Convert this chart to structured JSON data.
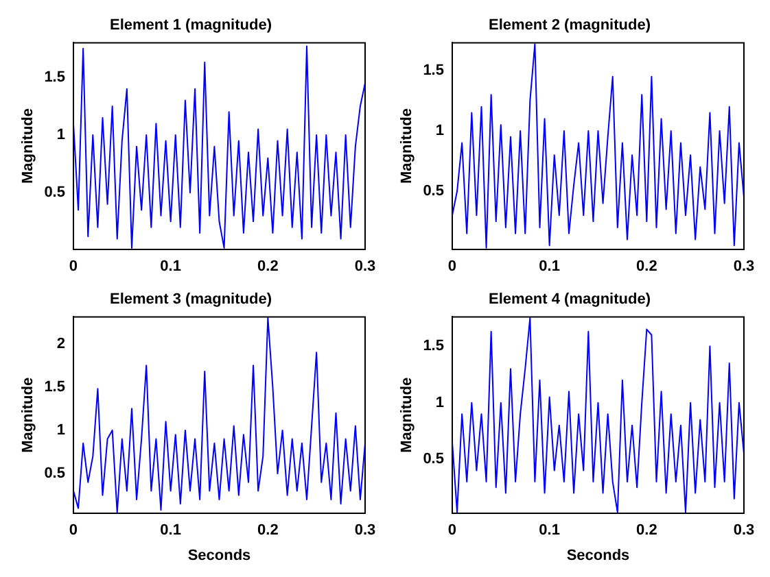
{
  "chart_data": [
    {
      "type": "line",
      "title": "Element 1 (magnitude)",
      "ylabel": "Magnitude",
      "xlim": [
        0,
        0.3
      ],
      "xticks": [
        0,
        0.1,
        0.2,
        0.3
      ],
      "ylim": [
        0.01,
        1.8
      ],
      "yticks": [
        0.5,
        1,
        1.5
      ],
      "grid": false,
      "legend": false,
      "marker": "none",
      "line_style": "solid",
      "x": [
        0,
        0.005,
        0.01,
        0.015,
        0.02,
        0.025,
        0.03,
        0.035,
        0.04,
        0.045,
        0.05,
        0.055,
        0.06,
        0.065,
        0.07,
        0.075,
        0.08,
        0.085,
        0.09,
        0.095,
        0.1,
        0.105,
        0.11,
        0.115,
        0.12,
        0.125,
        0.13,
        0.135,
        0.14,
        0.145,
        0.15,
        0.155,
        0.16,
        0.165,
        0.17,
        0.175,
        0.18,
        0.185,
        0.19,
        0.195,
        0.2,
        0.205,
        0.21,
        0.215,
        0.22,
        0.225,
        0.23,
        0.235,
        0.24,
        0.245,
        0.25,
        0.255,
        0.26,
        0.265,
        0.27,
        0.275,
        0.28,
        0.285,
        0.29,
        0.295,
        0.3
      ],
      "series": [
        {
          "color": "#0000ff",
          "values": [
            1.1,
            0.35,
            1.75,
            0.12,
            1.0,
            0.2,
            1.15,
            0.4,
            1.25,
            0.1,
            0.95,
            1.4,
            0.02,
            0.9,
            0.35,
            1.0,
            0.2,
            1.1,
            0.3,
            0.95,
            0.25,
            1.0,
            0.2,
            1.3,
            0.5,
            1.4,
            0.15,
            1.63,
            0.3,
            0.9,
            0.25,
            0.02,
            1.2,
            0.3,
            0.95,
            0.15,
            0.85,
            0.25,
            1.05,
            0.3,
            0.8,
            0.15,
            0.95,
            0.3,
            1.05,
            0.2,
            0.85,
            0.1,
            1.77,
            0.2,
            1.0,
            0.15,
            1.0,
            0.3,
            0.85,
            0.1,
            1.0,
            0.2,
            0.9,
            1.25,
            1.45
          ]
        }
      ]
    },
    {
      "type": "line",
      "title": "Element 2 (magnitude)",
      "ylabel": "Magnitude",
      "xlim": [
        0,
        0.3
      ],
      "xticks": [
        0,
        0.1,
        0.2,
        0.3
      ],
      "ylim": [
        0.02,
        1.73
      ],
      "yticks": [
        0.5,
        1,
        1.5
      ],
      "grid": false,
      "legend": false,
      "marker": "none",
      "line_style": "solid",
      "x": [
        0,
        0.005,
        0.01,
        0.015,
        0.02,
        0.025,
        0.03,
        0.035,
        0.04,
        0.045,
        0.05,
        0.055,
        0.06,
        0.065,
        0.07,
        0.075,
        0.08,
        0.085,
        0.09,
        0.095,
        0.1,
        0.105,
        0.11,
        0.115,
        0.12,
        0.125,
        0.13,
        0.135,
        0.14,
        0.145,
        0.15,
        0.155,
        0.16,
        0.165,
        0.17,
        0.175,
        0.18,
        0.185,
        0.19,
        0.195,
        0.2,
        0.205,
        0.21,
        0.215,
        0.22,
        0.225,
        0.23,
        0.235,
        0.24,
        0.245,
        0.25,
        0.255,
        0.26,
        0.265,
        0.27,
        0.275,
        0.28,
        0.285,
        0.29,
        0.295,
        0.3
      ],
      "series": [
        {
          "color": "#0000ff",
          "values": [
            0.3,
            0.5,
            0.9,
            0.15,
            1.15,
            0.3,
            1.2,
            0.03,
            1.3,
            0.25,
            1.05,
            0.2,
            0.95,
            0.15,
            1.0,
            0.15,
            1.25,
            1.72,
            0.2,
            1.1,
            0.05,
            0.8,
            0.3,
            1.0,
            0.15,
            0.55,
            0.9,
            0.3,
            1.0,
            0.25,
            1.0,
            0.4,
            0.95,
            1.45,
            0.2,
            0.9,
            0.1,
            0.8,
            0.3,
            1.3,
            0.25,
            1.45,
            0.2,
            1.1,
            0.35,
            1.0,
            0.15,
            0.9,
            0.3,
            0.8,
            0.1,
            0.7,
            0.35,
            1.15,
            0.15,
            1.0,
            0.4,
            1.2,
            0.05,
            0.9,
            0.45
          ]
        }
      ]
    },
    {
      "type": "line",
      "title": "Element 3 (magnitude)",
      "xlabel": "Seconds",
      "ylabel": "Magnitude",
      "xlim": [
        0,
        0.3
      ],
      "xticks": [
        0,
        0.1,
        0.2,
        0.3
      ],
      "ylim": [
        0.04,
        2.31
      ],
      "yticks": [
        0.5,
        1,
        1.5,
        2
      ],
      "grid": false,
      "legend": false,
      "marker": "none",
      "line_style": "solid",
      "x": [
        0,
        0.005,
        0.01,
        0.015,
        0.02,
        0.025,
        0.03,
        0.035,
        0.04,
        0.045,
        0.05,
        0.055,
        0.06,
        0.065,
        0.07,
        0.075,
        0.08,
        0.085,
        0.09,
        0.095,
        0.1,
        0.105,
        0.11,
        0.115,
        0.12,
        0.125,
        0.13,
        0.135,
        0.14,
        0.145,
        0.15,
        0.155,
        0.16,
        0.165,
        0.17,
        0.175,
        0.18,
        0.185,
        0.19,
        0.195,
        0.2,
        0.205,
        0.21,
        0.215,
        0.22,
        0.225,
        0.23,
        0.235,
        0.24,
        0.245,
        0.25,
        0.255,
        0.26,
        0.265,
        0.27,
        0.275,
        0.28,
        0.285,
        0.29,
        0.295,
        0.3
      ],
      "series": [
        {
          "color": "#0000ff",
          "values": [
            0.3,
            0.1,
            0.85,
            0.4,
            0.7,
            1.48,
            0.25,
            0.9,
            1.0,
            0.05,
            0.9,
            0.3,
            1.25,
            0.2,
            0.9,
            1.75,
            0.3,
            0.9,
            0.08,
            1.1,
            0.3,
            0.95,
            0.15,
            1.0,
            0.3,
            0.9,
            0.2,
            1.68,
            0.3,
            0.85,
            0.2,
            0.9,
            0.3,
            1.05,
            0.25,
            0.95,
            0.4,
            1.75,
            0.3,
            0.7,
            2.3,
            1.5,
            0.5,
            1.0,
            0.25,
            0.9,
            0.3,
            0.85,
            0.2,
            1.05,
            1.9,
            0.4,
            0.85,
            0.2,
            1.2,
            0.15,
            0.9,
            0.3,
            1.05,
            0.2,
            0.85
          ]
        }
      ]
    },
    {
      "type": "line",
      "title": "Element 4 (magnitude)",
      "xlabel": "Seconds",
      "ylabel": "Magnitude",
      "xlim": [
        0,
        0.3
      ],
      "xticks": [
        0,
        0.1,
        0.2,
        0.3
      ],
      "ylim": [
        0.02,
        1.76
      ],
      "yticks": [
        0.5,
        1,
        1.5
      ],
      "grid": false,
      "legend": false,
      "marker": "none",
      "line_style": "solid",
      "x": [
        0,
        0.005,
        0.01,
        0.015,
        0.02,
        0.025,
        0.03,
        0.035,
        0.04,
        0.045,
        0.05,
        0.055,
        0.06,
        0.065,
        0.07,
        0.075,
        0.08,
        0.085,
        0.09,
        0.095,
        0.1,
        0.105,
        0.11,
        0.115,
        0.12,
        0.125,
        0.13,
        0.135,
        0.14,
        0.145,
        0.15,
        0.155,
        0.16,
        0.165,
        0.17,
        0.175,
        0.18,
        0.185,
        0.19,
        0.195,
        0.2,
        0.205,
        0.21,
        0.215,
        0.22,
        0.225,
        0.23,
        0.235,
        0.24,
        0.245,
        0.25,
        0.255,
        0.26,
        0.265,
        0.27,
        0.275,
        0.28,
        0.285,
        0.29,
        0.295,
        0.3
      ],
      "series": [
        {
          "color": "#0000ff",
          "values": [
            0.65,
            0.03,
            0.9,
            0.3,
            1.0,
            0.4,
            0.9,
            0.3,
            1.63,
            0.25,
            1.0,
            0.2,
            1.3,
            0.3,
            0.9,
            1.3,
            1.75,
            0.3,
            1.2,
            0.2,
            1.05,
            0.4,
            0.8,
            0.3,
            1.1,
            0.2,
            0.9,
            0.4,
            1.63,
            0.3,
            1.0,
            0.2,
            0.9,
            0.3,
            0.03,
            1.2,
            0.3,
            0.8,
            0.25,
            1.0,
            1.65,
            1.6,
            0.3,
            1.1,
            0.2,
            0.9,
            0.3,
            0.8,
            0.03,
            1.0,
            0.2,
            0.85,
            0.3,
            1.5,
            0.25,
            1.0,
            0.3,
            1.35,
            0.15,
            1.0,
            0.55
          ]
        }
      ]
    }
  ]
}
